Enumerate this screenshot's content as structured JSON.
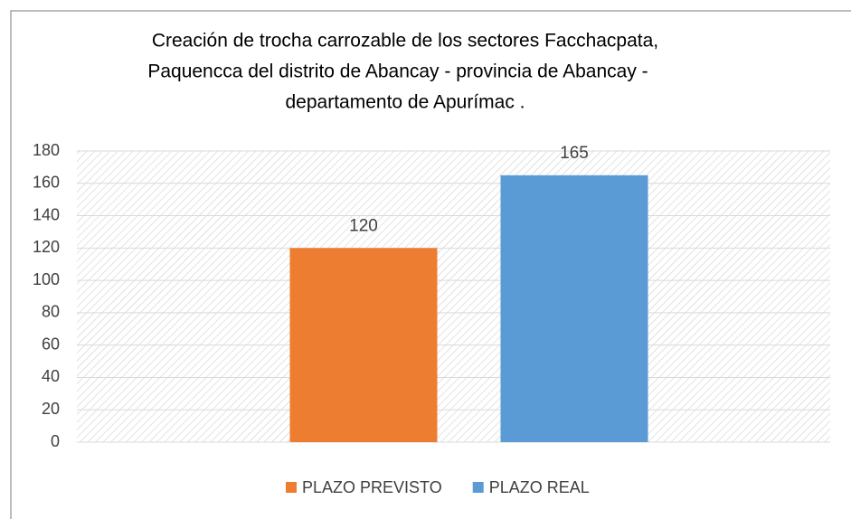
{
  "chart_data": {
    "type": "bar",
    "title": [
      "Creación de trocha carrozable de los sectores Facchacpata,",
      "Paquencca del distrito de Abancay - provincia de Abancay -",
      "departamento de Apurímac ."
    ],
    "categories": [
      null
    ],
    "series": [
      {
        "name": "PLAZO PREVISTO",
        "color": "#ed7d31",
        "values": [
          120
        ]
      },
      {
        "name": "PLAZO REAL",
        "color": "#5b9bd5",
        "values": [
          165
        ]
      }
    ],
    "ylim": [
      0,
      180
    ],
    "yticks": [
      0,
      20,
      40,
      60,
      80,
      100,
      120,
      140,
      160,
      180
    ],
    "grid": true,
    "legend": "bottom"
  }
}
